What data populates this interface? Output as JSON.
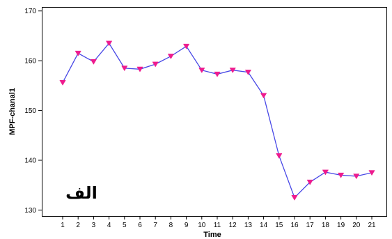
{
  "chart_data": {
    "type": "line",
    "title": "",
    "xlabel": "Time",
    "ylabel": "MPF-chanal1",
    "categories": [
      "1",
      "2",
      "3",
      "4",
      "5",
      "6",
      "7",
      "8",
      "9",
      "10",
      "11",
      "12",
      "13",
      "14",
      "15",
      "16",
      "17",
      "18",
      "19",
      "20",
      "21"
    ],
    "series": [
      {
        "values": [
          155.6,
          161.5,
          159.8,
          163.5,
          158.5,
          158.3,
          159.3,
          160.9,
          162.9,
          158.1,
          157.3,
          158.1,
          157.7,
          153.0,
          140.9,
          132.5,
          135.6,
          137.6,
          137.0,
          136.8,
          137.5
        ]
      }
    ],
    "yticks": [
      130,
      140,
      150,
      160,
      170
    ],
    "ylim": [
      128.8,
      170.8
    ],
    "grid": false,
    "legend": "none",
    "annotation": "الف",
    "colors": {
      "line": "#4848e6",
      "marker": "#ee1b8e",
      "axis": "#000000"
    }
  }
}
